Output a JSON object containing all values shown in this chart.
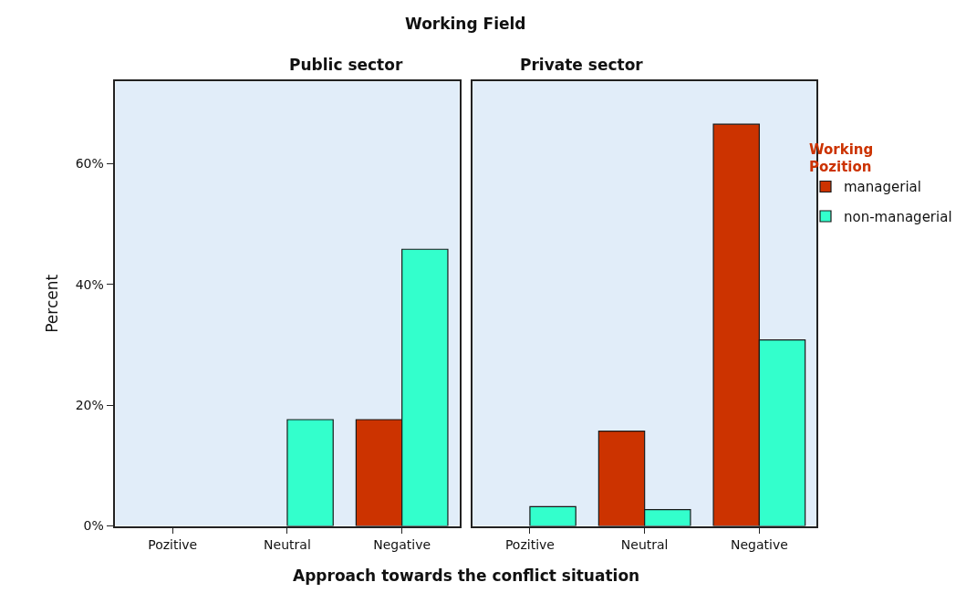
{
  "chart_data": [
    {
      "type": "bar",
      "title": "Public sector",
      "annotations": [
        "Working Field"
      ],
      "xlabel": "Approach towards the conflict situation",
      "ylabel": "Percent",
      "categories": [
        "Pozitive",
        "Neutral",
        "Negative"
      ],
      "series": [
        {
          "color": "#cc3300",
          "values": [
            null,
            null,
            17.6
          ]
        },
        {
          "color": "#33ffcc",
          "values": [
            null,
            17.6,
            45.8
          ]
        }
      ],
      "ylim": [
        0,
        73.6
      ],
      "yticks": [
        {
          "value": 0,
          "label": "0%"
        },
        {
          "value": 20,
          "label": "20%"
        },
        {
          "value": 40,
          "label": "40%"
        },
        {
          "value": 60,
          "label": "60%"
        }
      ],
      "grid": false
    },
    {
      "type": "bar",
      "title": "Private sector",
      "legend_title": "Working Pozition",
      "categories": [
        "Pozitive",
        "Neutral",
        "Negative"
      ],
      "series": [
        {
          "name": "managerial",
          "color": "#cc3300",
          "values": [
            null,
            15.7,
            66.5
          ]
        },
        {
          "name": "non-managerial",
          "color": "#33ffcc",
          "values": [
            3.2,
            2.7,
            30.8
          ]
        }
      ],
      "ylim": [
        0,
        73.6
      ],
      "tick_labels": "x",
      "grid": false,
      "legend": "right"
    }
  ]
}
